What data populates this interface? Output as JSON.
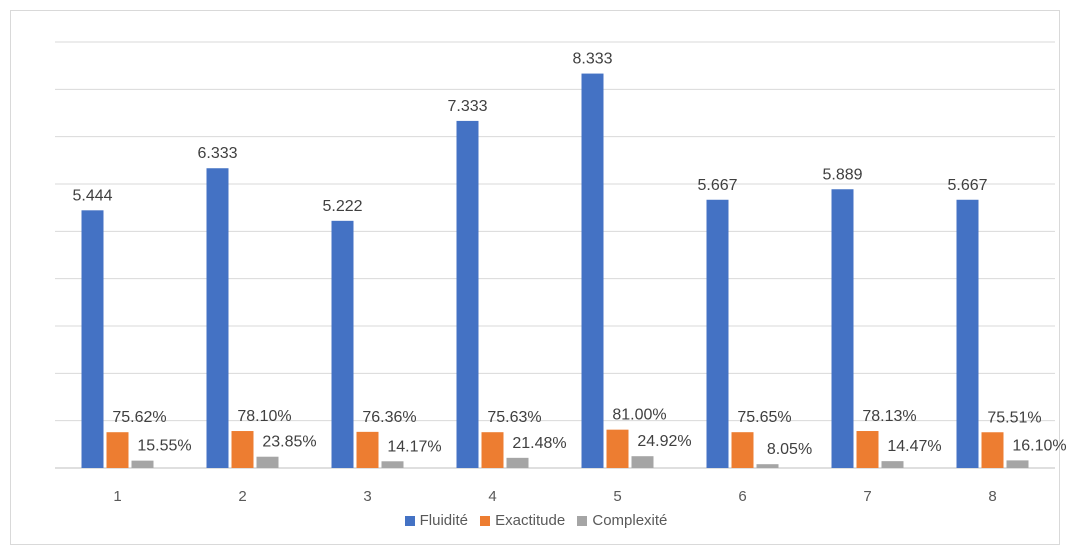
{
  "chart_data": {
    "type": "bar",
    "title": "",
    "xlabel": "",
    "ylabel": "",
    "categories": [
      "1",
      "2",
      "3",
      "4",
      "5",
      "6",
      "7",
      "8"
    ],
    "series": [
      {
        "name": "Fluidité",
        "color": "#4472C4",
        "values": [
          5.444,
          6.333,
          5.222,
          7.333,
          8.333,
          5.667,
          5.889,
          5.667
        ],
        "labels": [
          "5.444",
          "6.333",
          "5.222",
          "7.333",
          "8.333",
          "5.667",
          "5.889",
          "5.667"
        ]
      },
      {
        "name": "Exactitude",
        "color": "#ED7D31",
        "values": [
          0.7562,
          0.781,
          0.7636,
          0.7563,
          0.81,
          0.7565,
          0.7813,
          0.7551
        ],
        "labels": [
          "75.62%",
          "78.10%",
          "76.36%",
          "75.63%",
          "81.00%",
          "75.65%",
          "78.13%",
          "75.51%"
        ]
      },
      {
        "name": "Complexité",
        "color": "#A5A5A5",
        "values": [
          0.1555,
          0.2385,
          0.1417,
          0.2148,
          0.2492,
          0.0805,
          0.1447,
          0.161
        ],
        "labels": [
          "15.55%",
          "23.85%",
          "14.17%",
          "21.48%",
          "24.92%",
          "8.05%",
          "14.47%",
          "16.10%"
        ]
      }
    ],
    "ylim": [
      0,
      9
    ],
    "grid": true,
    "legend_position": "bottom"
  }
}
